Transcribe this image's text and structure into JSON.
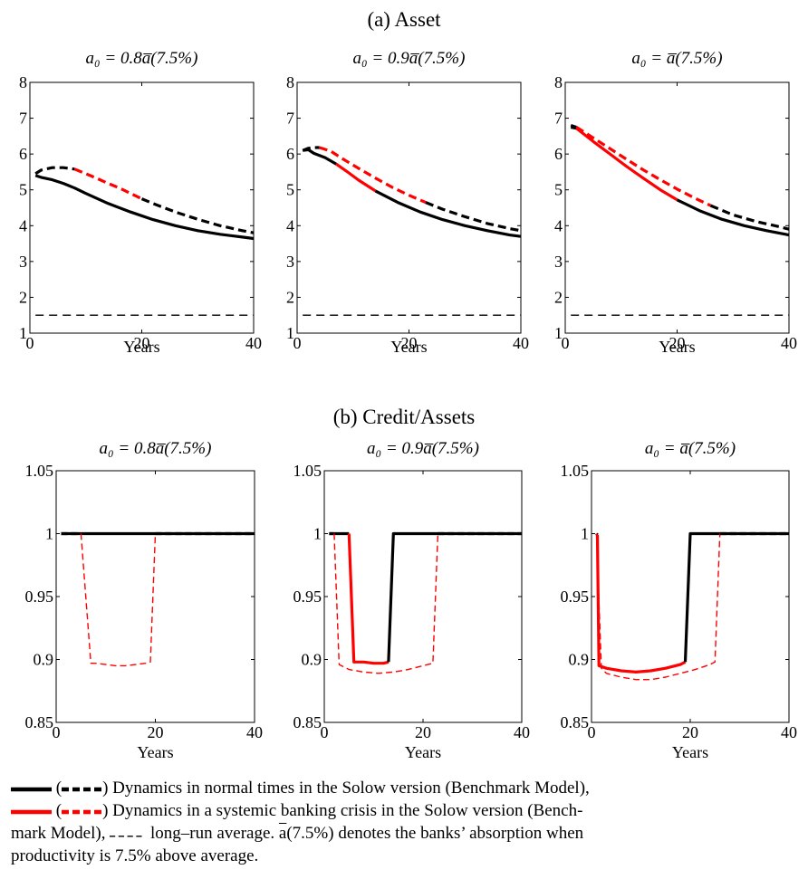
{
  "panel_titles": [
    "(a) Asset",
    "(b) Credit/Assets"
  ],
  "x_label": "Years",
  "subplot_titles": [
    "a₀ = 0.8a̅(7.5%)",
    "a₀ = 0.9a̅(7.5%)",
    "a₀ = a̅(7.5%)"
  ],
  "colors": {
    "normal": "#000000",
    "crisis": "#ff0000",
    "longrun": "#000000"
  },
  "chart_data": [
    {
      "panel": "(a) Asset",
      "type": "line",
      "xlim": [
        0,
        40
      ],
      "ylim": [
        1,
        8
      ],
      "xticks": [
        0,
        20,
        40
      ],
      "yticks": [
        1,
        2,
        3,
        4,
        5,
        6,
        7,
        8
      ],
      "xlabel": "Years",
      "title": "a₀ = 0.8a̅(7.5%)",
      "series": [
        {
          "style": "solid",
          "segments": [
            {
              "regime": "normal",
              "x": [
                1,
                2,
                4,
                6,
                8,
                10,
                14,
                18,
                22,
                26,
                30,
                34,
                38,
                40
              ],
              "y": [
                5.4,
                5.35,
                5.28,
                5.18,
                5.05,
                4.9,
                4.62,
                4.38,
                4.17,
                4.0,
                3.86,
                3.76,
                3.68,
                3.64
              ]
            }
          ]
        },
        {
          "style": "dashed",
          "segments": [
            {
              "regime": "normal",
              "x": [
                1,
                2,
                4,
                6,
                8
              ],
              "y": [
                5.45,
                5.55,
                5.62,
                5.62,
                5.58
              ]
            },
            {
              "regime": "crisis",
              "x": [
                8,
                10,
                12,
                14,
                16,
                18,
                20
              ],
              "y": [
                5.58,
                5.45,
                5.32,
                5.18,
                5.05,
                4.9,
                4.75
              ]
            },
            {
              "regime": "normal",
              "x": [
                20,
                22,
                26,
                30,
                34,
                38,
                40
              ],
              "y": [
                4.75,
                4.62,
                4.38,
                4.18,
                4.0,
                3.86,
                3.8
              ]
            }
          ]
        },
        {
          "style": "longrun",
          "segments": [
            {
              "regime": "longrun",
              "x": [
                1,
                40
              ],
              "y": [
                1.5,
                1.5
              ]
            }
          ]
        }
      ]
    },
    {
      "panel": "(a) Asset",
      "type": "line",
      "xlim": [
        0,
        40
      ],
      "ylim": [
        1,
        8
      ],
      "xticks": [
        0,
        20,
        40
      ],
      "yticks": [
        1,
        2,
        3,
        4,
        5,
        6,
        7,
        8
      ],
      "xlabel": "Years",
      "title": "a₀ = 0.9a̅(7.5%)",
      "series": [
        {
          "style": "solid",
          "segments": [
            {
              "regime": "normal",
              "x": [
                1,
                2,
                3,
                5,
                7
              ],
              "y": [
                6.1,
                6.12,
                6.02,
                5.9,
                5.72
              ]
            },
            {
              "regime": "crisis",
              "x": [
                7,
                9,
                11,
                14
              ],
              "y": [
                5.72,
                5.5,
                5.27,
                4.97
              ]
            },
            {
              "regime": "normal",
              "x": [
                14,
                18,
                22,
                26,
                30,
                34,
                38,
                40
              ],
              "y": [
                4.97,
                4.65,
                4.38,
                4.17,
                4.0,
                3.86,
                3.74,
                3.7
              ]
            }
          ]
        },
        {
          "style": "dashed",
          "segments": [
            {
              "regime": "normal",
              "x": [
                1,
                2,
                3,
                4
              ],
              "y": [
                6.1,
                6.16,
                6.18,
                6.18
              ]
            },
            {
              "regime": "crisis",
              "x": [
                4,
                6,
                8,
                11,
                14,
                17,
                20,
                23
              ],
              "y": [
                6.18,
                6.08,
                5.88,
                5.6,
                5.33,
                5.07,
                4.85,
                4.65
              ]
            },
            {
              "regime": "normal",
              "x": [
                23,
                26,
                30,
                34,
                38,
                40
              ],
              "y": [
                4.65,
                4.46,
                4.25,
                4.06,
                3.92,
                3.86
              ]
            }
          ]
        },
        {
          "style": "longrun",
          "segments": [
            {
              "regime": "longrun",
              "x": [
                1,
                40
              ],
              "y": [
                1.5,
                1.5
              ]
            }
          ]
        }
      ]
    },
    {
      "panel": "(a) Asset",
      "type": "line",
      "xlim": [
        0,
        40
      ],
      "ylim": [
        1,
        8
      ],
      "xticks": [
        0,
        20,
        40
      ],
      "yticks": [
        1,
        2,
        3,
        4,
        5,
        6,
        7,
        8
      ],
      "xlabel": "Years",
      "title": "a₀ = a̅(7.5%)",
      "series": [
        {
          "style": "solid",
          "segments": [
            {
              "regime": "normal",
              "x": [
                1,
                2
              ],
              "y": [
                6.75,
                6.72
              ]
            },
            {
              "regime": "crisis",
              "x": [
                2,
                5,
                8,
                11,
                14,
                17,
                20
              ],
              "y": [
                6.72,
                6.35,
                6.0,
                5.65,
                5.32,
                5.0,
                4.72
              ]
            },
            {
              "regime": "normal",
              "x": [
                20,
                24,
                28,
                32,
                36,
                40
              ],
              "y": [
                4.72,
                4.42,
                4.18,
                4.0,
                3.86,
                3.74
              ]
            }
          ]
        },
        {
          "style": "dashed",
          "segments": [
            {
              "regime": "normal",
              "x": [
                1,
                2
              ],
              "y": [
                6.8,
                6.75
              ]
            },
            {
              "regime": "crisis",
              "x": [
                2,
                5,
                8,
                11,
                14,
                17,
                20,
                23,
                26
              ],
              "y": [
                6.75,
                6.45,
                6.15,
                5.85,
                5.55,
                5.28,
                5.02,
                4.78,
                4.56
              ]
            },
            {
              "regime": "normal",
              "x": [
                26,
                30,
                34,
                38,
                40
              ],
              "y": [
                4.56,
                4.3,
                4.12,
                3.98,
                3.9
              ]
            }
          ]
        },
        {
          "style": "longrun",
          "segments": [
            {
              "regime": "longrun",
              "x": [
                1,
                40
              ],
              "y": [
                1.5,
                1.5
              ]
            }
          ]
        }
      ]
    },
    {
      "panel": "(b) Credit/Assets",
      "type": "line",
      "xlim": [
        0,
        40
      ],
      "ylim": [
        0.85,
        1.05
      ],
      "xticks": [
        0,
        20,
        40
      ],
      "yticks": [
        0.85,
        0.9,
        0.95,
        1,
        1.05
      ],
      "xlabel": "Years",
      "title": "a₀ = 0.8a̅(7.5%)",
      "series": [
        {
          "style": "solid",
          "segments": [
            {
              "regime": "normal",
              "x": [
                1,
                40
              ],
              "y": [
                1,
                1
              ]
            }
          ]
        },
        {
          "style": "dashed",
          "segments": [
            {
              "regime": "normal",
              "x": [
                1,
                5
              ],
              "y": [
                1,
                1
              ]
            },
            {
              "regime": "crisis",
              "x": [
                5,
                7,
                8,
                10,
                12,
                14,
                16,
                18,
                19,
                20
              ],
              "y": [
                1,
                0.897,
                0.897,
                0.896,
                0.895,
                0.895,
                0.896,
                0.897,
                0.898,
                1
              ]
            },
            {
              "regime": "normal",
              "x": [
                20,
                40
              ],
              "y": [
                1,
                1
              ]
            }
          ]
        }
      ]
    },
    {
      "panel": "(b) Credit/Assets",
      "type": "line",
      "xlim": [
        0,
        40
      ],
      "ylim": [
        0.85,
        1.05
      ],
      "xticks": [
        0,
        20,
        40
      ],
      "yticks": [
        0.85,
        0.9,
        0.95,
        1,
        1.05
      ],
      "xlabel": "Years",
      "title": "a₀ = 0.9a̅(7.5%)",
      "series": [
        {
          "style": "solid",
          "segments": [
            {
              "regime": "normal",
              "x": [
                1,
                5
              ],
              "y": [
                1,
                1
              ]
            },
            {
              "regime": "crisis",
              "x": [
                5,
                6,
                8,
                10,
                12,
                13
              ],
              "y": [
                1,
                0.898,
                0.898,
                0.897,
                0.897,
                0.898
              ]
            },
            {
              "regime": "normal",
              "x": [
                13,
                14,
                40
              ],
              "y": [
                0.898,
                1,
                1
              ]
            }
          ]
        },
        {
          "style": "dashed",
          "segments": [
            {
              "regime": "normal",
              "x": [
                1,
                2
              ],
              "y": [
                1,
                1
              ]
            },
            {
              "regime": "crisis",
              "x": [
                2,
                3,
                5,
                8,
                11,
                14,
                17,
                20,
                22,
                23
              ],
              "y": [
                1,
                0.896,
                0.892,
                0.89,
                0.889,
                0.89,
                0.892,
                0.895,
                0.897,
                1
              ]
            },
            {
              "regime": "normal",
              "x": [
                23,
                40
              ],
              "y": [
                1,
                1
              ]
            }
          ]
        }
      ]
    },
    {
      "panel": "(b) Credit/Assets",
      "type": "line",
      "xlim": [
        0,
        40
      ],
      "ylim": [
        0.85,
        1.05
      ],
      "xticks": [
        0,
        20,
        40
      ],
      "yticks": [
        0.85,
        0.9,
        0.95,
        1,
        1.05
      ],
      "xlabel": "Years",
      "title": "a₀ = a̅(7.5%)",
      "series": [
        {
          "style": "solid",
          "segments": [
            {
              "regime": "normal",
              "x": [
                1,
                1.2
              ],
              "y": [
                1,
                0.999
              ]
            },
            {
              "regime": "crisis",
              "x": [
                1.2,
                1.5,
                3,
                6,
                9,
                12,
                15,
                18,
                19
              ],
              "y": [
                0.999,
                0.895,
                0.893,
                0.891,
                0.89,
                0.891,
                0.893,
                0.896,
                0.898
              ]
            },
            {
              "regime": "normal",
              "x": [
                19,
                20,
                40
              ],
              "y": [
                0.898,
                1,
                1
              ]
            }
          ]
        },
        {
          "style": "dashed",
          "segments": [
            {
              "regime": "crisis",
              "x": [
                1,
                2,
                3,
                6,
                9,
                12,
                15,
                18,
                21,
                24,
                25,
                26
              ],
              "y": [
                1,
                0.893,
                0.889,
                0.886,
                0.884,
                0.884,
                0.886,
                0.889,
                0.892,
                0.896,
                0.898,
                1
              ]
            },
            {
              "regime": "normal",
              "x": [
                26,
                40
              ],
              "y": [
                1,
                1
              ]
            }
          ]
        }
      ]
    }
  ],
  "caption": {
    "normal_text": ") Dynamics in normal times in the Solow version (Benchmark Model),",
    "crisis_text_1": ") Dynamics in a systemic banking crisis in the Solow version (Bench-",
    "crisis_text_2a": "mark Model),",
    "longrun_text": "long–run average.",
    "abar_symbol": "a",
    "abar_text": "(7.5%) denotes the banks’ absorption when",
    "last_line": "productivity is 7.5% above average."
  }
}
